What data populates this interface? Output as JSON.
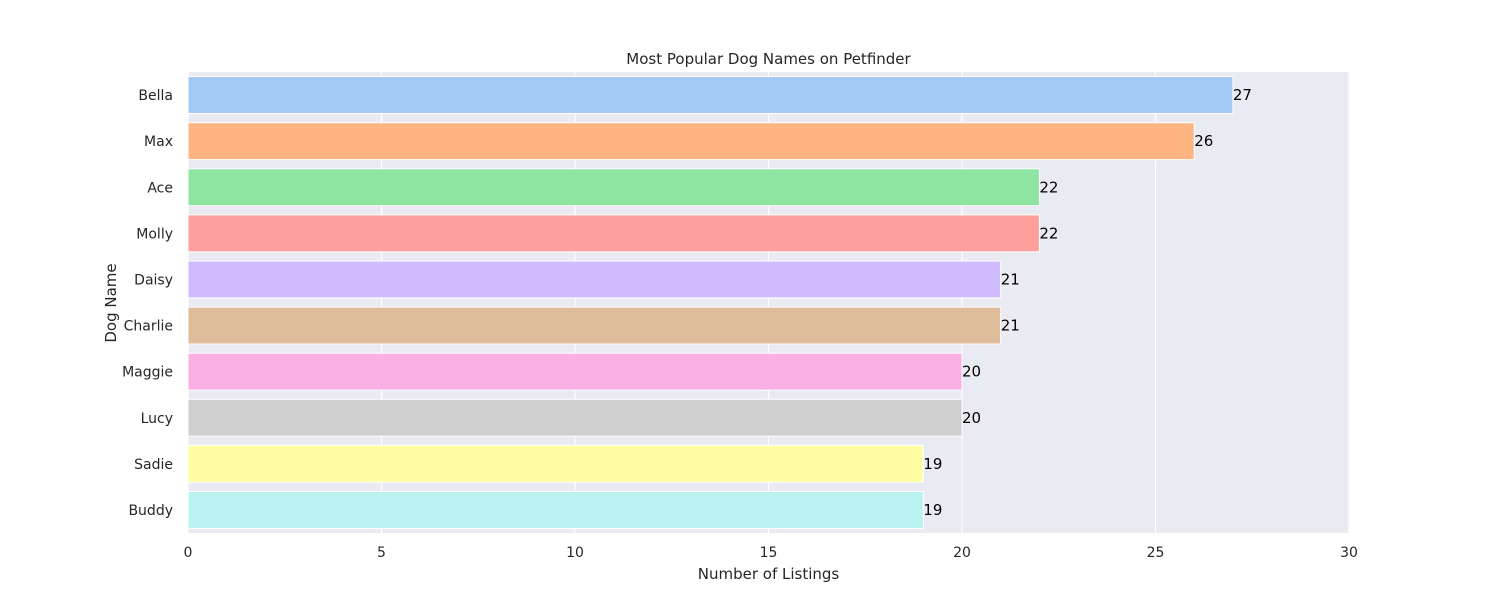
{
  "chart_data": {
    "type": "bar",
    "orientation": "horizontal",
    "title": "Most Popular Dog Names on Petfinder",
    "xlabel": "Number of Listings",
    "ylabel": "Dog Name",
    "xlim": [
      0,
      30
    ],
    "xticks": [
      0,
      5,
      10,
      15,
      20,
      25,
      30
    ],
    "grid": true,
    "categories": [
      "Bella",
      "Max",
      "Ace",
      "Molly",
      "Daisy",
      "Charlie",
      "Maggie",
      "Lucy",
      "Sadie",
      "Buddy"
    ],
    "values": [
      27,
      26,
      22,
      22,
      21,
      21,
      20,
      20,
      19,
      19
    ],
    "bar_colors": [
      "#a1c9f4",
      "#ffb482",
      "#8de5a1",
      "#ff9f9b",
      "#d0bbff",
      "#debb9b",
      "#fab0e4",
      "#cfcfcf",
      "#fffea3",
      "#b9f2f0"
    ],
    "background_color": "#eaeaf2",
    "grid_color": "#ffffff"
  }
}
